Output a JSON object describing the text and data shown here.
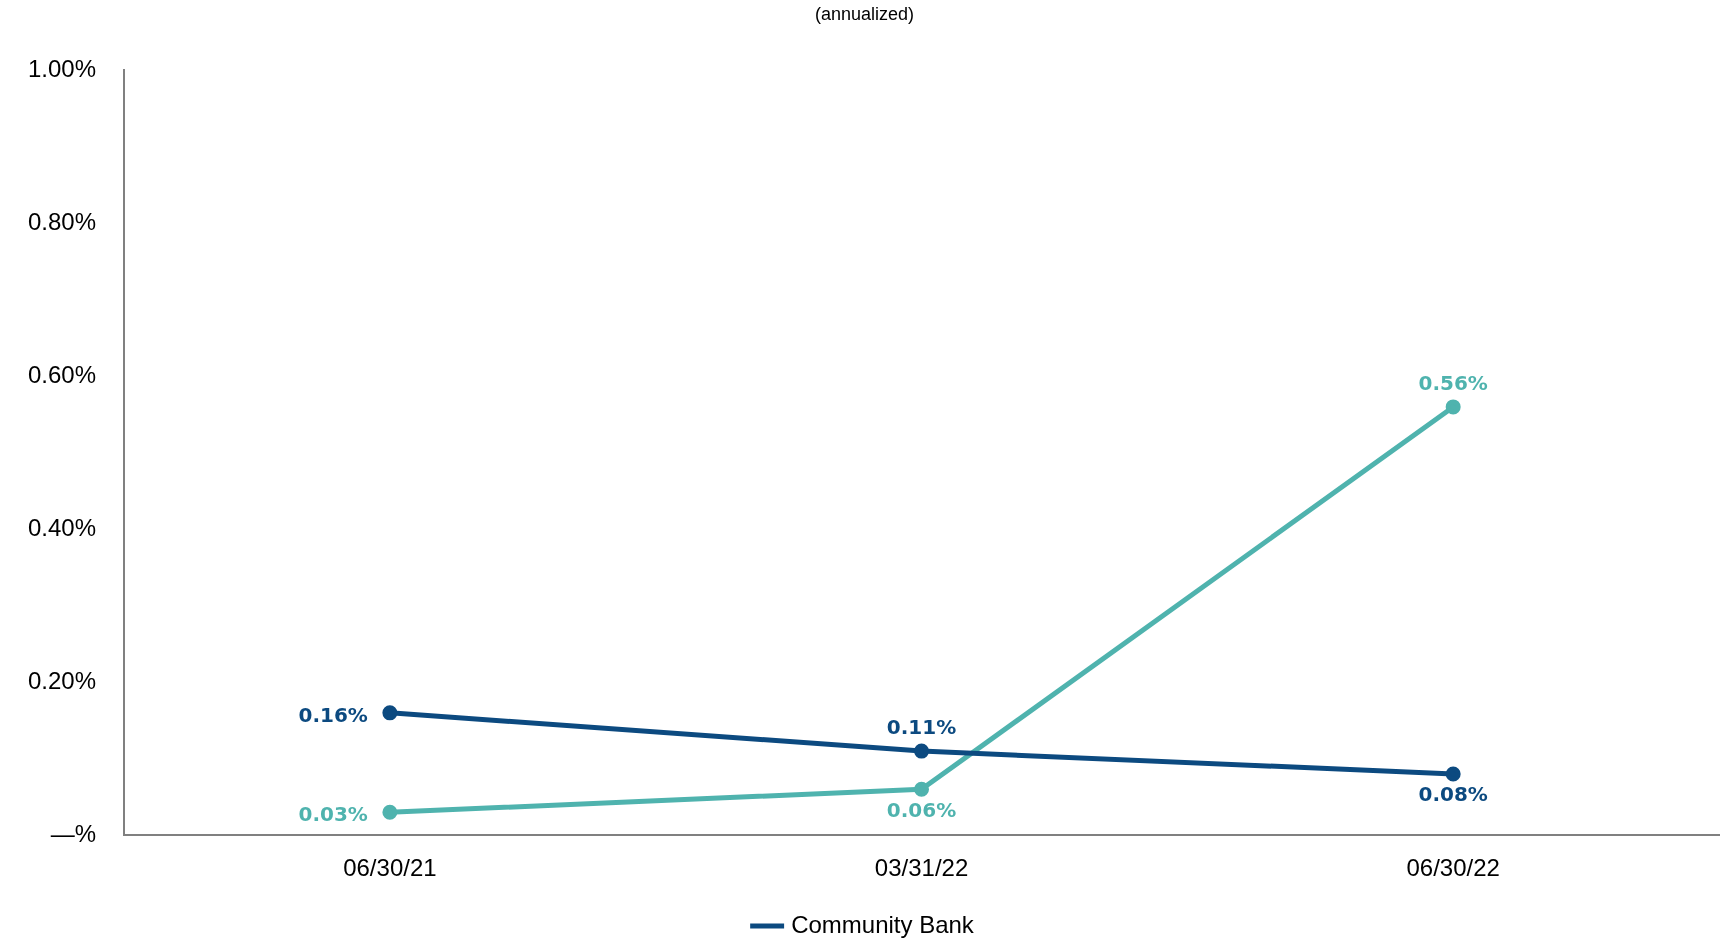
{
  "chart_data": {
    "type": "line",
    "subtitle": "(annualized)",
    "categories": [
      "06/30/21",
      "03/31/22",
      "06/30/22"
    ],
    "series": [
      {
        "name": "Community Bank",
        "color": "#0c4a80",
        "values": [
          0.16,
          0.11,
          0.08
        ],
        "value_labels": [
          "0.16%",
          "0.11%",
          "0.08%"
        ]
      },
      {
        "color": "#4fb3ae",
        "values": [
          0.03,
          0.06,
          0.56
        ],
        "value_labels": [
          "0.03%",
          "0.06%",
          "0.56%"
        ]
      }
    ],
    "ylim": [
      0,
      1
    ],
    "yticks": [
      {
        "value": 0,
        "label": "—%"
      },
      {
        "value": 0.2,
        "label": "0.20%"
      },
      {
        "value": 0.4,
        "label": "0.40%"
      },
      {
        "value": 0.6,
        "label": "0.60%"
      },
      {
        "value": 0.8,
        "label": "0.80%"
      },
      {
        "value": 1,
        "label": "1.00%"
      }
    ],
    "grid": false,
    "legend": "bottom",
    "marker": "circle",
    "line_style": "solid"
  }
}
